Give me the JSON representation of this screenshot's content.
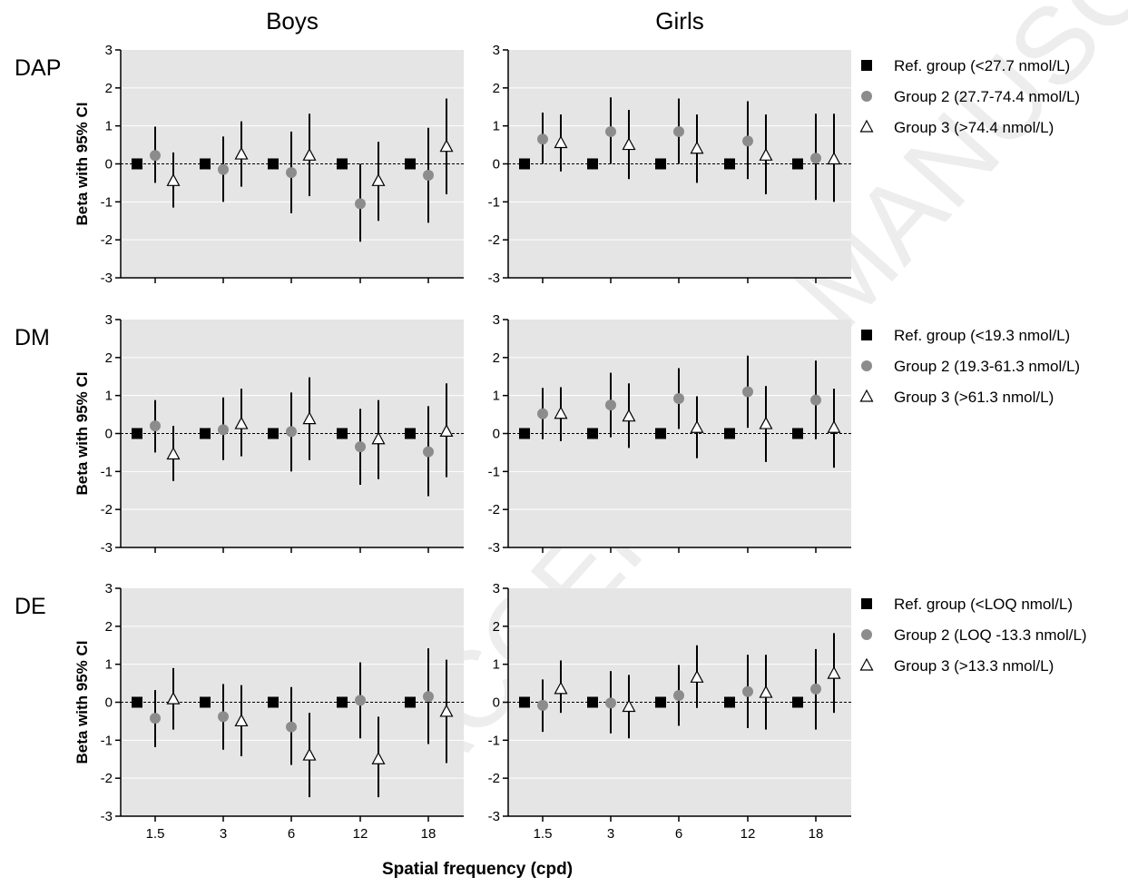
{
  "figure": {
    "column_titles": [
      "Boys",
      "Girls"
    ],
    "x_axis_label": "Spatial frequency (cpd)",
    "y_axis_label": "Beta with 95% CI",
    "watermark": "ACCEPTED MANUSCRIPT"
  },
  "colors": {
    "plot_background": "#e5e5e5",
    "ref_marker": "#000000",
    "group2_marker": "#8c8c8c",
    "group3_marker_fill": "#ffffff",
    "error_bar": "#000000",
    "zero_line": "#000000"
  },
  "chart_data": [
    {
      "type": "scatter",
      "row_label": "DAP",
      "ylim": [
        -3,
        3
      ],
      "yticks": [
        -3,
        -2,
        -1,
        0,
        1,
        2,
        3
      ],
      "categories": [
        "1.5",
        "3",
        "6",
        "12",
        "18"
      ],
      "legend": [
        "Ref. group (<27.7 nmol/L)",
        "Group 2 (27.7-74.4 nmol/L)",
        "Group 3 (>74.4 nmol/L)"
      ],
      "panels": [
        {
          "title": "Boys",
          "series": [
            {
              "group": "ref",
              "values": [
                0,
                0,
                0,
                0,
                0
              ]
            },
            {
              "group": "group2",
              "values": [
                0.22,
                -0.15,
                -0.23,
                -1.05,
                -0.3
              ],
              "ci_low": [
                -0.5,
                -1.0,
                -1.3,
                -2.05,
                -1.55
              ],
              "ci_high": [
                0.98,
                0.72,
                0.85,
                0.0,
                0.95
              ]
            },
            {
              "group": "group3",
              "values": [
                -0.45,
                0.25,
                0.22,
                -0.45,
                0.45
              ],
              "ci_low": [
                -1.15,
                -0.6,
                -0.85,
                -1.5,
                -0.8
              ],
              "ci_high": [
                0.3,
                1.12,
                1.32,
                0.58,
                1.72
              ]
            }
          ]
        },
        {
          "title": "Girls",
          "series": [
            {
              "group": "ref",
              "values": [
                0,
                0,
                0,
                0,
                0
              ]
            },
            {
              "group": "group2",
              "values": [
                0.65,
                0.85,
                0.85,
                0.6,
                0.15
              ],
              "ci_low": [
                0.0,
                0.0,
                0.0,
                -0.4,
                -0.95
              ],
              "ci_high": [
                1.35,
                1.75,
                1.72,
                1.65,
                1.32
              ]
            },
            {
              "group": "group3",
              "values": [
                0.55,
                0.5,
                0.4,
                0.22,
                0.12
              ],
              "ci_low": [
                -0.2,
                -0.4,
                -0.5,
                -0.8,
                -1.0
              ],
              "ci_high": [
                1.3,
                1.42,
                1.3,
                1.3,
                1.32
              ]
            }
          ]
        }
      ]
    },
    {
      "type": "scatter",
      "row_label": "DM",
      "ylim": [
        -3,
        3
      ],
      "yticks": [
        -3,
        -2,
        -1,
        0,
        1,
        2,
        3
      ],
      "categories": [
        "1.5",
        "3",
        "6",
        "12",
        "18"
      ],
      "legend": [
        "Ref. group (<19.3 nmol/L)",
        "Group 2 (19.3-61.3 nmol/L)",
        "Group 3 (>61.3 nmol/L)"
      ],
      "panels": [
        {
          "title": "Boys",
          "series": [
            {
              "group": "ref",
              "values": [
                0,
                0,
                0,
                0,
                0
              ]
            },
            {
              "group": "group2",
              "values": [
                0.2,
                0.1,
                0.05,
                -0.35,
                -0.48
              ],
              "ci_low": [
                -0.5,
                -0.7,
                -1.0,
                -1.35,
                -1.65
              ],
              "ci_high": [
                0.88,
                0.95,
                1.08,
                0.65,
                0.72
              ]
            },
            {
              "group": "group3",
              "values": [
                -0.55,
                0.25,
                0.38,
                -0.15,
                0.05
              ],
              "ci_low": [
                -1.25,
                -0.6,
                -0.7,
                -1.2,
                -1.15
              ],
              "ci_high": [
                0.2,
                1.18,
                1.48,
                0.88,
                1.32
              ]
            }
          ]
        },
        {
          "title": "Girls",
          "series": [
            {
              "group": "ref",
              "values": [
                0,
                0,
                0,
                0,
                0
              ]
            },
            {
              "group": "group2",
              "values": [
                0.52,
                0.75,
                0.92,
                1.1,
                0.88
              ],
              "ci_low": [
                -0.15,
                -0.1,
                0.12,
                0.15,
                -0.15
              ],
              "ci_high": [
                1.2,
                1.6,
                1.72,
                2.05,
                1.92
              ]
            },
            {
              "group": "group3",
              "values": [
                0.52,
                0.45,
                0.15,
                0.25,
                0.15
              ],
              "ci_low": [
                -0.2,
                -0.38,
                -0.65,
                -0.75,
                -0.9
              ],
              "ci_high": [
                1.22,
                1.32,
                0.98,
                1.25,
                1.18
              ]
            }
          ]
        }
      ]
    },
    {
      "type": "scatter",
      "row_label": "DE",
      "ylim": [
        -3,
        3
      ],
      "yticks": [
        -3,
        -2,
        -1,
        0,
        1,
        2,
        3
      ],
      "categories": [
        "1.5",
        "3",
        "6",
        "12",
        "18"
      ],
      "legend": [
        "Ref. group (<LOQ nmol/L)",
        "Group 2 (LOQ -13.3 nmol/L)",
        "Group 3 (>13.3 nmol/L)"
      ],
      "panels": [
        {
          "title": "Boys",
          "series": [
            {
              "group": "ref",
              "values": [
                0,
                0,
                0,
                0,
                0
              ]
            },
            {
              "group": "group2",
              "values": [
                -0.42,
                -0.38,
                -0.65,
                0.05,
                0.15
              ],
              "ci_low": [
                -1.18,
                -1.25,
                -1.65,
                -0.95,
                -1.1
              ],
              "ci_high": [
                0.32,
                0.48,
                0.4,
                1.05,
                1.42
              ]
            },
            {
              "group": "group3",
              "values": [
                0.08,
                -0.5,
                -1.4,
                -1.5,
                -0.25
              ],
              "ci_low": [
                -0.72,
                -1.42,
                -2.5,
                -2.5,
                -1.6
              ],
              "ci_high": [
                0.9,
                0.45,
                -0.28,
                -0.38,
                1.12
              ]
            }
          ]
        },
        {
          "title": "Girls",
          "series": [
            {
              "group": "ref",
              "values": [
                0,
                0,
                0,
                0,
                0
              ]
            },
            {
              "group": "group2",
              "values": [
                -0.08,
                -0.02,
                0.18,
                0.28,
                0.35
              ],
              "ci_low": [
                -0.78,
                -0.82,
                -0.62,
                -0.68,
                -0.72
              ],
              "ci_high": [
                0.6,
                0.82,
                0.98,
                1.25,
                1.4
              ]
            },
            {
              "group": "group3",
              "values": [
                0.35,
                -0.12,
                0.65,
                0.25,
                0.75
              ],
              "ci_low": [
                -0.28,
                -0.95,
                -0.15,
                -0.72,
                -0.28
              ],
              "ci_high": [
                1.1,
                0.72,
                1.5,
                1.25,
                1.82
              ]
            }
          ]
        }
      ]
    }
  ]
}
